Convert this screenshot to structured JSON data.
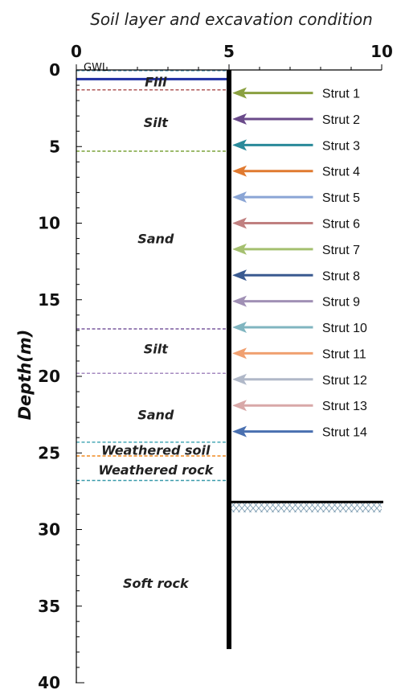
{
  "chart_data": {
    "type": "diagram",
    "title": "Soil layer and excavation condition",
    "ylabel": "Depth(m)",
    "xlim": [
      0,
      10
    ],
    "ylim": [
      0,
      40
    ],
    "x_ticks": [
      "0",
      "5",
      "10"
    ],
    "y_ticks": [
      "0",
      "5",
      "10",
      "15",
      "20",
      "25",
      "30",
      "35",
      "40"
    ],
    "gwl_label": "GWL",
    "gwl_depth": 0.0,
    "wall": {
      "x": 5,
      "top": 0,
      "bottom": 37.8
    },
    "excavation_bottom": 28.2,
    "boundaries": [
      {
        "depth": 0.6,
        "color": "#1f2fa3",
        "style": "solid"
      },
      {
        "depth": 1.3,
        "color": "#b05a5a",
        "style": "dashed"
      },
      {
        "depth": 5.3,
        "color": "#7ba33a",
        "style": "dashed"
      },
      {
        "depth": 16.9,
        "color": "#7a5a9e",
        "style": "dashed"
      },
      {
        "depth": 19.8,
        "color": "#a58ac0",
        "style": "dashed"
      },
      {
        "depth": 24.3,
        "color": "#4aa9b8",
        "style": "dashed"
      },
      {
        "depth": 25.2,
        "color": "#f08a20",
        "style": "dashed"
      },
      {
        "depth": 26.8,
        "color": "#3a9aaa",
        "style": "dashed"
      }
    ],
    "layers": [
      {
        "name": "Fill",
        "x": 2.6,
        "depth": 0.75
      },
      {
        "name": "Silt",
        "x": 2.6,
        "depth": 3.4
      },
      {
        "name": "Sand",
        "x": 2.6,
        "depth": 11.0
      },
      {
        "name": "Silt",
        "x": 2.6,
        "depth": 18.2
      },
      {
        "name": "Sand",
        "x": 2.6,
        "depth": 22.5
      },
      {
        "name": "Weathered soil",
        "x": 2.6,
        "depth": 24.8
      },
      {
        "name": "Weathered rock",
        "x": 2.6,
        "depth": 26.1
      },
      {
        "name": "Soft rock",
        "x": 2.6,
        "depth": 33.5
      }
    ],
    "struts": [
      {
        "label": "Strut 1",
        "depth": 1.5,
        "color": "#8aa040"
      },
      {
        "label": "Strut 2",
        "depth": 3.2,
        "color": "#6a4a8a"
      },
      {
        "label": "Strut 3",
        "depth": 4.9,
        "color": "#2a8a9a"
      },
      {
        "label": "Strut 4",
        "depth": 6.6,
        "color": "#e07a30"
      },
      {
        "label": "Strut 5",
        "depth": 8.3,
        "color": "#8aa5d5"
      },
      {
        "label": "Strut 6",
        "depth": 10.0,
        "color": "#c08080"
      },
      {
        "label": "Strut 7",
        "depth": 11.7,
        "color": "#a5c070"
      },
      {
        "label": "Strut 8",
        "depth": 13.4,
        "color": "#3a5a90"
      },
      {
        "label": "Strut 9",
        "depth": 15.1,
        "color": "#a090b5"
      },
      {
        "label": "Strut 10",
        "depth": 16.8,
        "color": "#80b5c0"
      },
      {
        "label": "Strut 11",
        "depth": 18.5,
        "color": "#f0a070"
      },
      {
        "label": "Strut 12",
        "depth": 20.2,
        "color": "#b0b8c8"
      },
      {
        "label": "Strut 13",
        "depth": 21.9,
        "color": "#d8a8a8"
      },
      {
        "label": "Strut 14",
        "depth": 23.6,
        "color": "#4a70b0"
      }
    ]
  }
}
